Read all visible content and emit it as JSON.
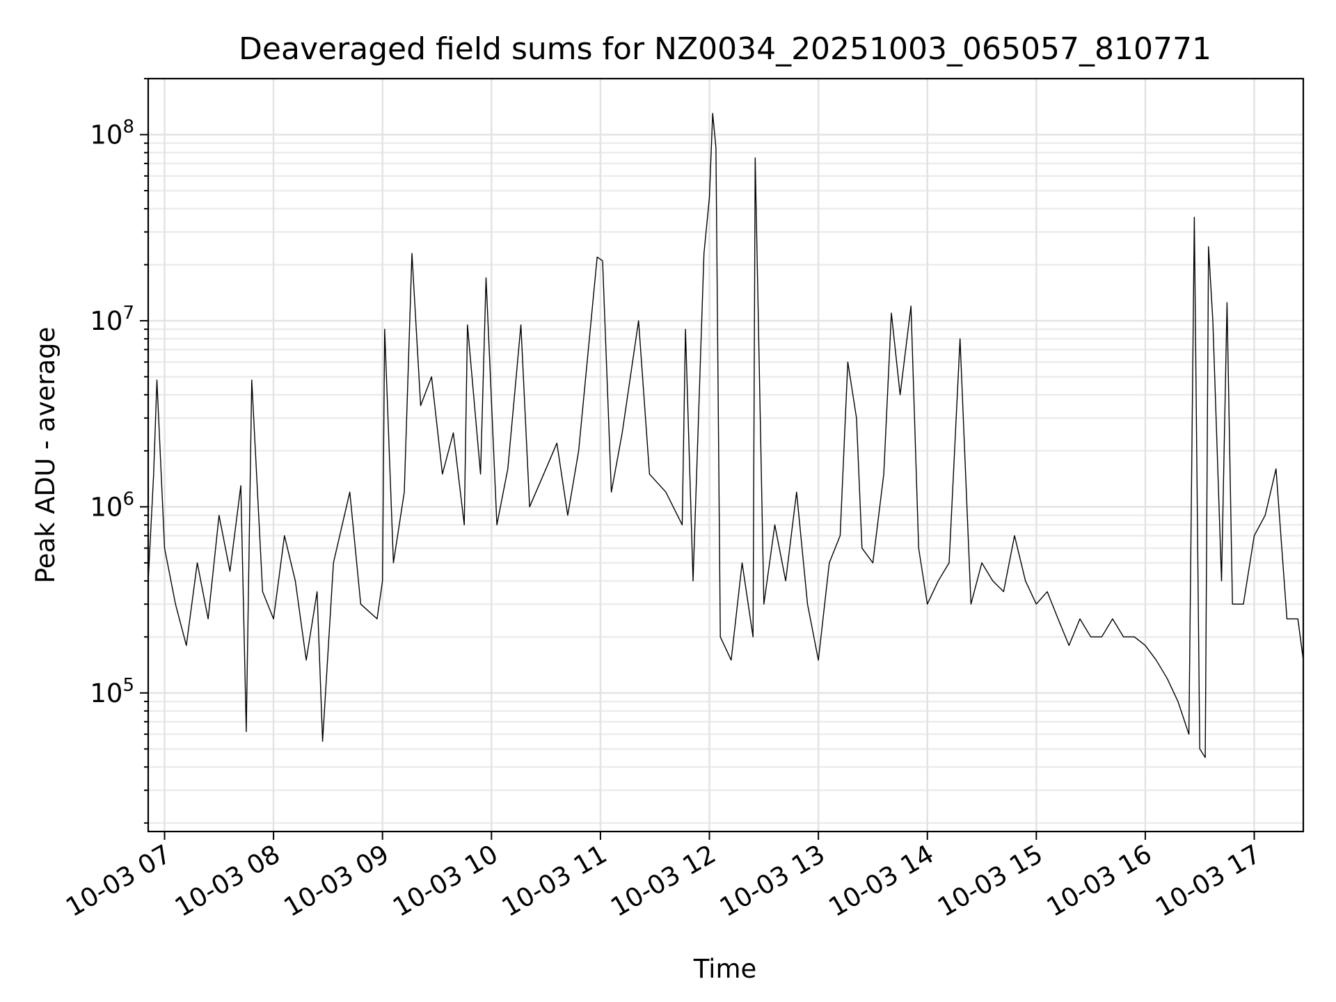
{
  "chart_data": {
    "type": "line",
    "title": "Deaveraged field sums for NZ0034_20251003_065057_810771",
    "xlabel": "Time",
    "ylabel": "Peak ADU - average",
    "yscale": "log",
    "ylim": [
      18000,
      200000000
    ],
    "xlim_hours": [
      6.85,
      17.45
    ],
    "grid": true,
    "x_ticks": [
      {
        "hour": 7,
        "label": "10-03 07"
      },
      {
        "hour": 8,
        "label": "10-03 08"
      },
      {
        "hour": 9,
        "label": "10-03 09"
      },
      {
        "hour": 10,
        "label": "10-03 10"
      },
      {
        "hour": 11,
        "label": "10-03 11"
      },
      {
        "hour": 12,
        "label": "10-03 12"
      },
      {
        "hour": 13,
        "label": "10-03 13"
      },
      {
        "hour": 14,
        "label": "10-03 14"
      },
      {
        "hour": 15,
        "label": "10-03 15"
      },
      {
        "hour": 16,
        "label": "10-03 16"
      },
      {
        "hour": 17,
        "label": "10-03 17"
      }
    ],
    "y_ticks": [
      {
        "value": 100000,
        "base": "10",
        "exp": "5"
      },
      {
        "value": 1000000,
        "base": "10",
        "exp": "6"
      },
      {
        "value": 10000000,
        "base": "10",
        "exp": "7"
      },
      {
        "value": 100000000,
        "base": "10",
        "exp": "8"
      }
    ],
    "series": [
      {
        "name": "Peak ADU - average",
        "color": "#000000",
        "points": [
          [
            6.85,
            400000
          ],
          [
            6.9,
            1500000
          ],
          [
            6.93,
            4800000
          ],
          [
            7.0,
            600000
          ],
          [
            7.1,
            300000
          ],
          [
            7.2,
            180000
          ],
          [
            7.3,
            500000
          ],
          [
            7.4,
            250000
          ],
          [
            7.5,
            900000
          ],
          [
            7.6,
            450000
          ],
          [
            7.7,
            1300000
          ],
          [
            7.75,
            62000
          ],
          [
            7.8,
            4800000
          ],
          [
            7.9,
            350000
          ],
          [
            8.0,
            250000
          ],
          [
            8.1,
            700000
          ],
          [
            8.2,
            400000
          ],
          [
            8.3,
            150000
          ],
          [
            8.4,
            350000
          ],
          [
            8.45,
            55000
          ],
          [
            8.55,
            500000
          ],
          [
            8.7,
            1200000
          ],
          [
            8.8,
            300000
          ],
          [
            8.95,
            250000
          ],
          [
            9.0,
            400000
          ],
          [
            9.02,
            9000000
          ],
          [
            9.1,
            500000
          ],
          [
            9.2,
            1200000
          ],
          [
            9.27,
            23000000
          ],
          [
            9.35,
            3500000
          ],
          [
            9.45,
            5000000
          ],
          [
            9.55,
            1500000
          ],
          [
            9.65,
            2500000
          ],
          [
            9.75,
            800000
          ],
          [
            9.78,
            9500000
          ],
          [
            9.9,
            1500000
          ],
          [
            9.95,
            17000000
          ],
          [
            10.05,
            800000
          ],
          [
            10.15,
            1600000
          ],
          [
            10.27,
            9500000
          ],
          [
            10.35,
            1000000
          ],
          [
            10.5,
            1600000
          ],
          [
            10.6,
            2200000
          ],
          [
            10.7,
            900000
          ],
          [
            10.8,
            2000000
          ],
          [
            10.97,
            22000000
          ],
          [
            11.02,
            21000000
          ],
          [
            11.1,
            1200000
          ],
          [
            11.2,
            2500000
          ],
          [
            11.35,
            10000000
          ],
          [
            11.45,
            1500000
          ],
          [
            11.6,
            1200000
          ],
          [
            11.75,
            800000
          ],
          [
            11.78,
            9000000
          ],
          [
            11.85,
            400000
          ],
          [
            11.95,
            23000000
          ],
          [
            12.0,
            46000000
          ],
          [
            12.03,
            130000000
          ],
          [
            12.06,
            85000000
          ],
          [
            12.1,
            200000
          ],
          [
            12.2,
            150000
          ],
          [
            12.3,
            500000
          ],
          [
            12.4,
            200000
          ],
          [
            12.42,
            75000000
          ],
          [
            12.5,
            300000
          ],
          [
            12.6,
            800000
          ],
          [
            12.7,
            400000
          ],
          [
            12.8,
            1200000
          ],
          [
            12.9,
            300000
          ],
          [
            13.0,
            150000
          ],
          [
            13.1,
            500000
          ],
          [
            13.2,
            700000
          ],
          [
            13.27,
            6000000
          ],
          [
            13.35,
            3000000
          ],
          [
            13.4,
            600000
          ],
          [
            13.5,
            500000
          ],
          [
            13.6,
            1500000
          ],
          [
            13.67,
            11000000
          ],
          [
            13.75,
            4000000
          ],
          [
            13.85,
            12000000
          ],
          [
            13.92,
            600000
          ],
          [
            14.0,
            300000
          ],
          [
            14.1,
            400000
          ],
          [
            14.2,
            500000
          ],
          [
            14.3,
            8000000
          ],
          [
            14.4,
            300000
          ],
          [
            14.5,
            500000
          ],
          [
            14.6,
            400000
          ],
          [
            14.7,
            350000
          ],
          [
            14.8,
            700000
          ],
          [
            14.9,
            400000
          ],
          [
            15.0,
            300000
          ],
          [
            15.1,
            350000
          ],
          [
            15.2,
            250000
          ],
          [
            15.3,
            180000
          ],
          [
            15.4,
            250000
          ],
          [
            15.5,
            200000
          ],
          [
            15.6,
            200000
          ],
          [
            15.7,
            250000
          ],
          [
            15.8,
            200000
          ],
          [
            15.9,
            200000
          ],
          [
            16.0,
            180000
          ],
          [
            16.1,
            150000
          ],
          [
            16.2,
            120000
          ],
          [
            16.3,
            90000
          ],
          [
            16.4,
            60000
          ],
          [
            16.45,
            36000000
          ],
          [
            16.5,
            50000
          ],
          [
            16.55,
            45000
          ],
          [
            16.58,
            25000000
          ],
          [
            16.62,
            10000000
          ],
          [
            16.7,
            400000
          ],
          [
            16.75,
            12500000
          ],
          [
            16.8,
            300000
          ],
          [
            16.9,
            300000
          ],
          [
            17.0,
            700000
          ],
          [
            17.1,
            900000
          ],
          [
            17.2,
            1600000
          ],
          [
            17.3,
            250000
          ],
          [
            17.4,
            250000
          ],
          [
            17.45,
            150000
          ]
        ]
      }
    ]
  }
}
